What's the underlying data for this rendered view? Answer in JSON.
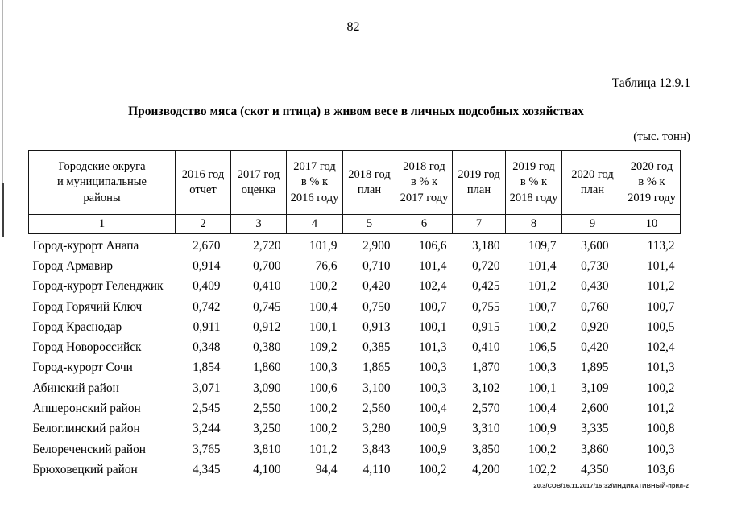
{
  "page": {
    "number": "82",
    "table_label": "Таблица 12.9.1",
    "title": "Производство мяса (скот и птица) в живом весе в личных подсобных хозяйствах",
    "units": "(тыс. тонн)",
    "footer": "20.3/СОВ/16.11.2017/16:32/ИНДИКАТИВНЫЙ-прил-2"
  },
  "table": {
    "columns": [
      {
        "label": "Городские округа\nи муниципальные\nрайоны",
        "num": "1"
      },
      {
        "label": "2016 год\nотчет",
        "num": "2"
      },
      {
        "label": "2017 год\nоценка",
        "num": "3"
      },
      {
        "label": "2017 год\nв % к\n2016 году",
        "num": "4"
      },
      {
        "label": "2018 год\nплан",
        "num": "5"
      },
      {
        "label": "2018 год\nв % к\n2017 году",
        "num": "6"
      },
      {
        "label": "2019 год\nплан",
        "num": "7"
      },
      {
        "label": "2019 год\nв % к\n2018 году",
        "num": "8"
      },
      {
        "label": "2020 год\nплан",
        "num": "9"
      },
      {
        "label": "2020 год\nв % к\n2019 году",
        "num": "10"
      }
    ],
    "rows": [
      {
        "name": "Город-курорт Анапа",
        "values": [
          "2,670",
          "2,720",
          "101,9",
          "2,900",
          "106,6",
          "3,180",
          "109,7",
          "3,600",
          "113,2"
        ]
      },
      {
        "name": "Город Армавир",
        "values": [
          "0,914",
          "0,700",
          "76,6",
          "0,710",
          "101,4",
          "0,720",
          "101,4",
          "0,730",
          "101,4"
        ]
      },
      {
        "name": "Город-курорт Геленджик",
        "values": [
          "0,409",
          "0,410",
          "100,2",
          "0,420",
          "102,4",
          "0,425",
          "101,2",
          "0,430",
          "101,2"
        ]
      },
      {
        "name": "Город Горячий Ключ",
        "values": [
          "0,742",
          "0,745",
          "100,4",
          "0,750",
          "100,7",
          "0,755",
          "100,7",
          "0,760",
          "100,7"
        ]
      },
      {
        "name": "Город Краснодар",
        "values": [
          "0,911",
          "0,912",
          "100,1",
          "0,913",
          "100,1",
          "0,915",
          "100,2",
          "0,920",
          "100,5"
        ]
      },
      {
        "name": "Город Новороссийск",
        "values": [
          "0,348",
          "0,380",
          "109,2",
          "0,385",
          "101,3",
          "0,410",
          "106,5",
          "0,420",
          "102,4"
        ]
      },
      {
        "name": "Город-курорт Сочи",
        "values": [
          "1,854",
          "1,860",
          "100,3",
          "1,865",
          "100,3",
          "1,870",
          "100,3",
          "1,895",
          "101,3"
        ]
      },
      {
        "name": "Абинский район",
        "values": [
          "3,071",
          "3,090",
          "100,6",
          "3,100",
          "100,3",
          "3,102",
          "100,1",
          "3,109",
          "100,2"
        ]
      },
      {
        "name": "Апшеронский район",
        "values": [
          "2,545",
          "2,550",
          "100,2",
          "2,560",
          "100,4",
          "2,570",
          "100,4",
          "2,600",
          "101,2"
        ]
      },
      {
        "name": "Белоглинский район",
        "values": [
          "3,244",
          "3,250",
          "100,2",
          "3,280",
          "100,9",
          "3,310",
          "100,9",
          "3,335",
          "100,8"
        ]
      },
      {
        "name": "Белореченский район",
        "values": [
          "3,765",
          "3,810",
          "101,2",
          "3,843",
          "100,9",
          "3,850",
          "100,2",
          "3,860",
          "100,3"
        ]
      },
      {
        "name": "Брюховецкий район",
        "values": [
          "4,345",
          "4,100",
          "94,4",
          "4,110",
          "100,2",
          "4,200",
          "102,2",
          "4,350",
          "103,6"
        ]
      }
    ]
  }
}
